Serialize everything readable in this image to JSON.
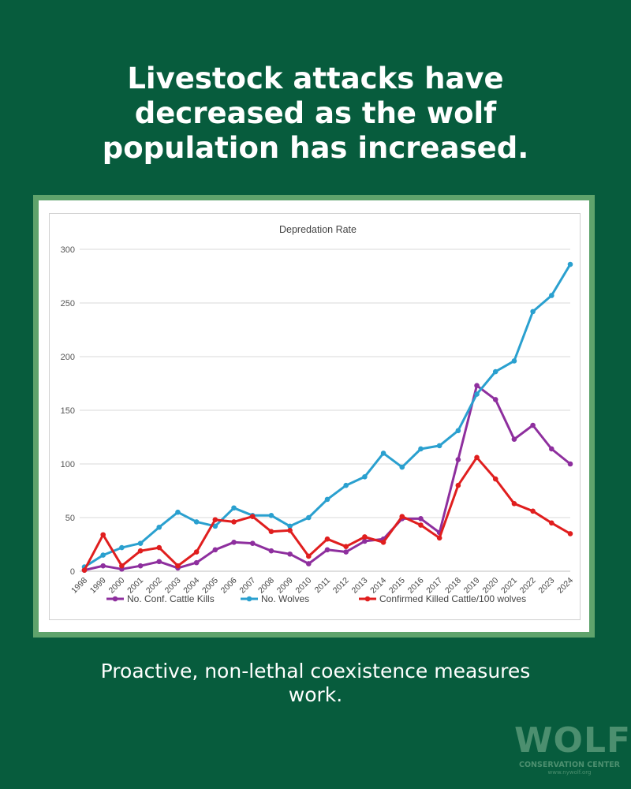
{
  "headline": {
    "line1": "Livestock attacks have",
    "line2": "decreased as the wolf",
    "line3": "population has increased."
  },
  "subline": {
    "line1": "Proactive, non-lethal coexistence measures",
    "line2": "work."
  },
  "logo": {
    "wordmark": "WOLF",
    "subtitle": "CONSERVATION CENTER",
    "url": "www.nywolf.org"
  },
  "colors": {
    "background": "#075c3d",
    "frame": "#5fa36c",
    "kills": "#8e2f9e",
    "wolves": "#2aa0cf",
    "ratio": "#e01e1e"
  },
  "chart_data": {
    "type": "line",
    "title": "Depredation Rate",
    "xlabel": "",
    "ylabel": "",
    "ylim": [
      0,
      300
    ],
    "yticks": [
      0,
      50,
      100,
      150,
      200,
      250,
      300
    ],
    "grid": true,
    "legend_position": "bottom",
    "categories": [
      "1998",
      "1999",
      "2000",
      "2001",
      "2002",
      "2003",
      "2004",
      "2005",
      "2006",
      "2007",
      "2008",
      "2009",
      "2010",
      "2011",
      "2012",
      "2013",
      "2014",
      "2015",
      "2016",
      "2017",
      "2018",
      "2019",
      "2020",
      "2021",
      "2022",
      "2023",
      "2024"
    ],
    "series": [
      {
        "name": "No. Conf. Cattle Kills",
        "color": "#8e2f9e",
        "values": [
          1,
          5,
          2,
          5,
          9,
          3,
          8,
          20,
          27,
          26,
          19,
          16,
          7,
          20,
          18,
          28,
          30,
          49,
          49,
          36,
          104,
          173,
          160,
          123,
          136,
          114,
          100
        ]
      },
      {
        "name": "No. Wolves",
        "color": "#2aa0cf",
        "values": [
          4,
          15,
          22,
          26,
          41,
          55,
          46,
          42,
          59,
          52,
          52,
          42,
          50,
          67,
          80,
          88,
          110,
          97,
          114,
          117,
          131,
          165,
          186,
          196,
          242,
          257,
          286
        ]
      },
      {
        "name": "Confirmed Killed Cattle/100 wolves",
        "color": "#e01e1e",
        "values": [
          1,
          34,
          5,
          19,
          22,
          5,
          18,
          48,
          46,
          51,
          37,
          38,
          14,
          30,
          23,
          32,
          27,
          51,
          43,
          31,
          80,
          106,
          86,
          63,
          56,
          45,
          35
        ]
      }
    ]
  }
}
